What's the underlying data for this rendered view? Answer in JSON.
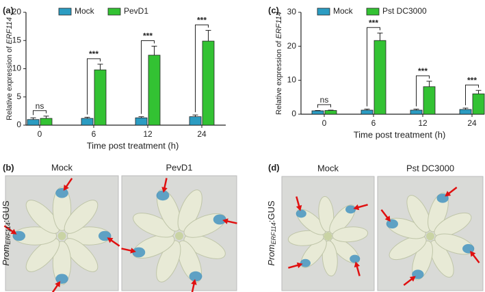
{
  "chart_data": [
    {
      "type": "bar",
      "label": "(a)",
      "ylabel": [
        "Relative expression of ",
        "ERF114"
      ],
      "xlabel": "Time post treatment  (h)",
      "categories": [
        "0",
        "6",
        "12",
        "24"
      ],
      "series": [
        {
          "name": "Mock",
          "color": "#2b9cc2",
          "values": [
            1.0,
            1.2,
            1.3,
            1.5
          ],
          "errors": [
            0.3,
            0.2,
            0.2,
            0.3
          ]
        },
        {
          "name": "PevD1",
          "color": "#33c233",
          "values": [
            1.2,
            9.8,
            12.4,
            14.9
          ],
          "errors": [
            0.4,
            1.0,
            1.6,
            1.9
          ]
        }
      ],
      "annotations": [
        "ns",
        "***",
        "***",
        "***"
      ],
      "ylim": [
        0,
        20
      ],
      "yticks": [
        0,
        5,
        10,
        15,
        20
      ]
    },
    {
      "type": "bar",
      "label": "(c)",
      "ylabel": [
        "Relative expression of ",
        "ERF114"
      ],
      "xlabel": "Time post treatment  (h)",
      "categories": [
        "0",
        "6",
        "12",
        "24"
      ],
      "series": [
        {
          "name": "Mock",
          "color": "#2b9cc2",
          "values": [
            1.0,
            1.2,
            1.2,
            1.4
          ],
          "errors": [
            0.1,
            0.3,
            0.3,
            0.4
          ]
        },
        {
          "name": "Pst DC3000",
          "color": "#33c233",
          "values": [
            1.1,
            21.7,
            8.1,
            6.0
          ],
          "errors": [
            0.1,
            2.2,
            1.6,
            1.0
          ]
        }
      ],
      "annotations": [
        "ns",
        "***",
        "***",
        "***"
      ],
      "ylim": [
        0,
        30
      ],
      "yticks": [
        0,
        10,
        20,
        30
      ]
    }
  ],
  "panels": [
    {
      "label": "(b)",
      "photos": [
        {
          "title": "Mock"
        },
        {
          "title": "PevD1"
        }
      ],
      "side_label": [
        "Prom",
        "ERF114",
        ":GUS"
      ]
    },
    {
      "label": "(d)",
      "photos": [
        {
          "title": "Mock"
        },
        {
          "title": "Pst DC3000"
        }
      ],
      "side_label": [
        "Prom",
        "ERF114",
        ":GUS"
      ]
    }
  ]
}
